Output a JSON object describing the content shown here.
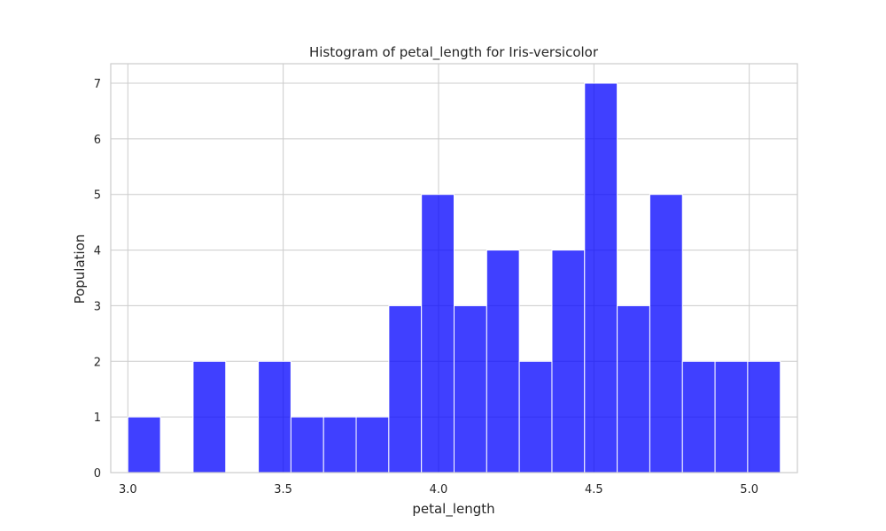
{
  "chart_data": {
    "type": "bar",
    "title": "Histogram of petal_length for Iris-versicolor",
    "xlabel": "petal_length",
    "ylabel": "Population",
    "bin_width": 0.105,
    "bins": [
      {
        "start": 3.0,
        "end": 3.105,
        "count": 1
      },
      {
        "start": 3.105,
        "end": 3.21,
        "count": 0
      },
      {
        "start": 3.21,
        "end": 3.315,
        "count": 2
      },
      {
        "start": 3.315,
        "end": 3.42,
        "count": 0
      },
      {
        "start": 3.42,
        "end": 3.525,
        "count": 2
      },
      {
        "start": 3.525,
        "end": 3.63,
        "count": 1
      },
      {
        "start": 3.63,
        "end": 3.735,
        "count": 1
      },
      {
        "start": 3.735,
        "end": 3.84,
        "count": 1
      },
      {
        "start": 3.84,
        "end": 3.945,
        "count": 3
      },
      {
        "start": 3.945,
        "end": 4.05,
        "count": 5
      },
      {
        "start": 4.05,
        "end": 4.155,
        "count": 3
      },
      {
        "start": 4.155,
        "end": 4.26,
        "count": 4
      },
      {
        "start": 4.26,
        "end": 4.365,
        "count": 2
      },
      {
        "start": 4.365,
        "end": 4.47,
        "count": 4
      },
      {
        "start": 4.47,
        "end": 4.575,
        "count": 7
      },
      {
        "start": 4.575,
        "end": 4.68,
        "count": 3
      },
      {
        "start": 4.68,
        "end": 4.785,
        "count": 5
      },
      {
        "start": 4.785,
        "end": 4.89,
        "count": 2
      },
      {
        "start": 4.89,
        "end": 4.995,
        "count": 2
      },
      {
        "start": 4.995,
        "end": 5.1,
        "count": 2
      }
    ],
    "xlim": [
      2.945,
      5.155
    ],
    "ylim": [
      0,
      7.35
    ],
    "xticks": [
      3.0,
      3.5,
      4.0,
      4.5,
      5.0
    ],
    "xtick_labels": [
      "3.0",
      "3.5",
      "4.0",
      "4.5",
      "5.0"
    ],
    "yticks": [
      0,
      1,
      2,
      3,
      4,
      5,
      6,
      7
    ],
    "ytick_labels": [
      "0",
      "1",
      "2",
      "3",
      "4",
      "5",
      "6",
      "7"
    ],
    "grid": true,
    "bar_color": "#0000ff",
    "bar_opacity": 0.75,
    "bar_edge_color": "#ffffff",
    "grid_color": "#cccccc",
    "frame_color": "#cccccc"
  }
}
